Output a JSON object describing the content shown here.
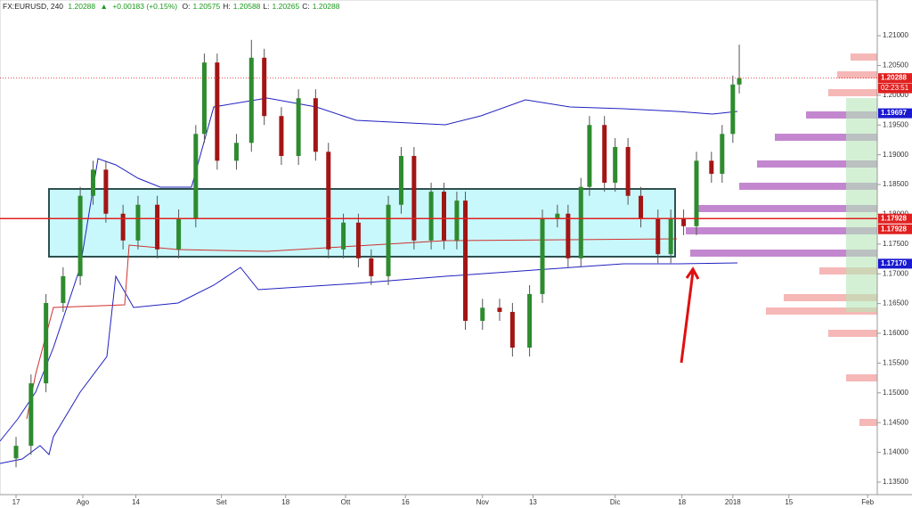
{
  "header": {
    "symbol": "FX:EURUSD, 240",
    "last": "1.20288",
    "arrow": "▲",
    "change": "+0.00183 (+0.15%)",
    "ohlc": [
      {
        "key": "O:",
        "value": "1.20575"
      },
      {
        "key": "H:",
        "value": "1.20588"
      },
      {
        "key": "L:",
        "value": "1.20265"
      },
      {
        "key": "C:",
        "value": "1.20288"
      }
    ]
  },
  "chart_data": {
    "type": "candlestick",
    "x": [
      0,
      3.5,
      7,
      11,
      15,
      18,
      21,
      25,
      28.5,
      33,
      38,
      42,
      44,
      47,
      51.5,
      55,
      58,
      62,
      66,
      70,
      73,
      76.5,
      80,
      83,
      87,
      90,
      93,
      97,
      100,
      103,
      105,
      109,
      113,
      116,
      120,
      123,
      126.5,
      129,
      132,
      134,
      137.5,
      140,
      143,
      146,
      150,
      153,
      156,
      159,
      162.5,
      165,
      167.5,
      169
    ],
    "open": [
      1.139,
      1.1411,
      1.1516,
      1.1651,
      1.1696,
      1.1831,
      1.1875,
      1.1801,
      1.1756,
      1.1816,
      1.1741,
      1.1793,
      1.1935,
      1.2055,
      1.189,
      1.192,
      1.2063,
      1.1965,
      1.1898,
      1.1995,
      1.1905,
      1.1741,
      1.1786,
      1.1726,
      1.1696,
      1.1816,
      1.1898,
      1.1756,
      1.1838,
      1.1756,
      1.1823,
      1.1621,
      1.1643,
      1.1636,
      1.1576,
      1.1666,
      1.1793,
      1.1801,
      1.1726,
      1.1846,
      1.195,
      1.1853,
      1.1913,
      1.1831,
      1.1793,
      1.1733,
      1.1793,
      1.178,
      1.189,
      1.1868,
      1.1935,
      1.2018
    ],
    "high": [
      1.1426,
      1.1531,
      1.1666,
      1.1711,
      1.1846,
      1.189,
      1.189,
      1.1816,
      1.1831,
      1.1831,
      1.1808,
      1.195,
      1.207,
      1.207,
      1.1935,
      1.2093,
      1.2078,
      1.198,
      1.201,
      1.201,
      1.192,
      1.1801,
      1.1801,
      1.1741,
      1.1831,
      1.1913,
      1.1913,
      1.1853,
      1.1853,
      1.1838,
      1.1838,
      1.1658,
      1.1658,
      1.1651,
      1.1681,
      1.1808,
      1.1816,
      1.1816,
      1.1861,
      1.1965,
      1.1965,
      1.1928,
      1.1928,
      1.1846,
      1.1808,
      1.1808,
      1.1808,
      1.1905,
      1.1905,
      1.195,
      1.2033,
      1.2085
    ],
    "low": [
      1.1375,
      1.1396,
      1.1501,
      1.1636,
      1.1681,
      1.1816,
      1.1786,
      1.1741,
      1.1741,
      1.1726,
      1.1726,
      1.1778,
      1.192,
      1.1875,
      1.1875,
      1.1905,
      1.195,
      1.1883,
      1.1883,
      1.189,
      1.1726,
      1.1726,
      1.1711,
      1.1681,
      1.1681,
      1.1801,
      1.1741,
      1.1741,
      1.1741,
      1.1741,
      1.1606,
      1.1606,
      1.1621,
      1.1561,
      1.1561,
      1.1651,
      1.1778,
      1.1711,
      1.1711,
      1.1831,
      1.1838,
      1.1838,
      1.1816,
      1.1778,
      1.1718,
      1.1718,
      1.1765,
      1.1765,
      1.1853,
      1.1853,
      1.192,
      1.2003
    ],
    "close": [
      1.1411,
      1.1516,
      1.1651,
      1.1696,
      1.1831,
      1.1875,
      1.1801,
      1.1756,
      1.1816,
      1.1741,
      1.1793,
      1.1935,
      1.2055,
      1.189,
      1.192,
      1.2063,
      1.1965,
      1.1898,
      1.1995,
      1.1905,
      1.1741,
      1.1786,
      1.1726,
      1.1696,
      1.1816,
      1.1898,
      1.1756,
      1.1838,
      1.1756,
      1.1823,
      1.1621,
      1.1643,
      1.1636,
      1.1576,
      1.1666,
      1.1793,
      1.1801,
      1.1726,
      1.1846,
      1.195,
      1.1853,
      1.1913,
      1.1831,
      1.1793,
      1.1733,
      1.1793,
      1.178,
      1.189,
      1.1868,
      1.1935,
      1.2018,
      1.20288
    ],
    "up_color": "#2e8b2e",
    "down_color": "#a31515",
    "xlim": [
      -3.75,
      201.25
    ],
    "xticks": [
      {
        "value": 0,
        "label": "17"
      },
      {
        "value": 15.6,
        "label": "Ago"
      },
      {
        "value": 28,
        "label": "14"
      },
      {
        "value": 48,
        "label": "Set"
      },
      {
        "value": 63,
        "label": "18"
      },
      {
        "value": 77,
        "label": "Ott"
      },
      {
        "value": 91,
        "label": "16"
      },
      {
        "value": 109,
        "label": "Nov"
      },
      {
        "value": 120.8,
        "label": "13"
      },
      {
        "value": 140,
        "label": "Dic"
      },
      {
        "value": 155.6,
        "label": "18"
      },
      {
        "value": 167.5,
        "label": "2018"
      },
      {
        "value": 180.6,
        "label": "15"
      },
      {
        "value": 199,
        "label": "Feb"
      }
    ],
    "ylim": [
      1.1329,
      1.216
    ],
    "yticks": [
      {
        "value": 1.135,
        "label": "1.13500"
      },
      {
        "value": 1.14,
        "label": "1.14000"
      },
      {
        "value": 1.145,
        "label": "1.14500"
      },
      {
        "value": 1.15,
        "label": "1.15000"
      },
      {
        "value": 1.155,
        "label": "1.15500"
      },
      {
        "value": 1.16,
        "label": "1.16000"
      },
      {
        "value": 1.165,
        "label": "1.16500"
      },
      {
        "value": 1.17,
        "label": "1.17000"
      },
      {
        "value": 1.175,
        "label": "1.17500"
      },
      {
        "value": 1.18,
        "label": "1.18000"
      },
      {
        "value": 1.185,
        "label": "1.18500"
      },
      {
        "value": 1.19,
        "label": "1.19000"
      },
      {
        "value": 1.195,
        "label": "1.19500"
      },
      {
        "value": 1.2,
        "label": "1.20000"
      },
      {
        "value": 1.205,
        "label": "1.20500"
      },
      {
        "value": 1.21,
        "label": "1.21000"
      }
    ],
    "price_labels": [
      {
        "value": 1.20288,
        "label": "1.20288",
        "color": "#e02020",
        "line": "dotted"
      },
      {
        "value": 1.19697,
        "label": "1.19697",
        "color": "#1a1ad0"
      },
      {
        "value": 1.17928,
        "label": "1.17928",
        "color": "#e02020",
        "line": "solid"
      },
      {
        "value": 1.17928,
        "label": "1.17928",
        "color": "#e02020"
      },
      {
        "value": 1.1717,
        "label": "1.17170",
        "color": "#1a1ad0"
      }
    ],
    "countdown": "02:23:51"
  }
}
